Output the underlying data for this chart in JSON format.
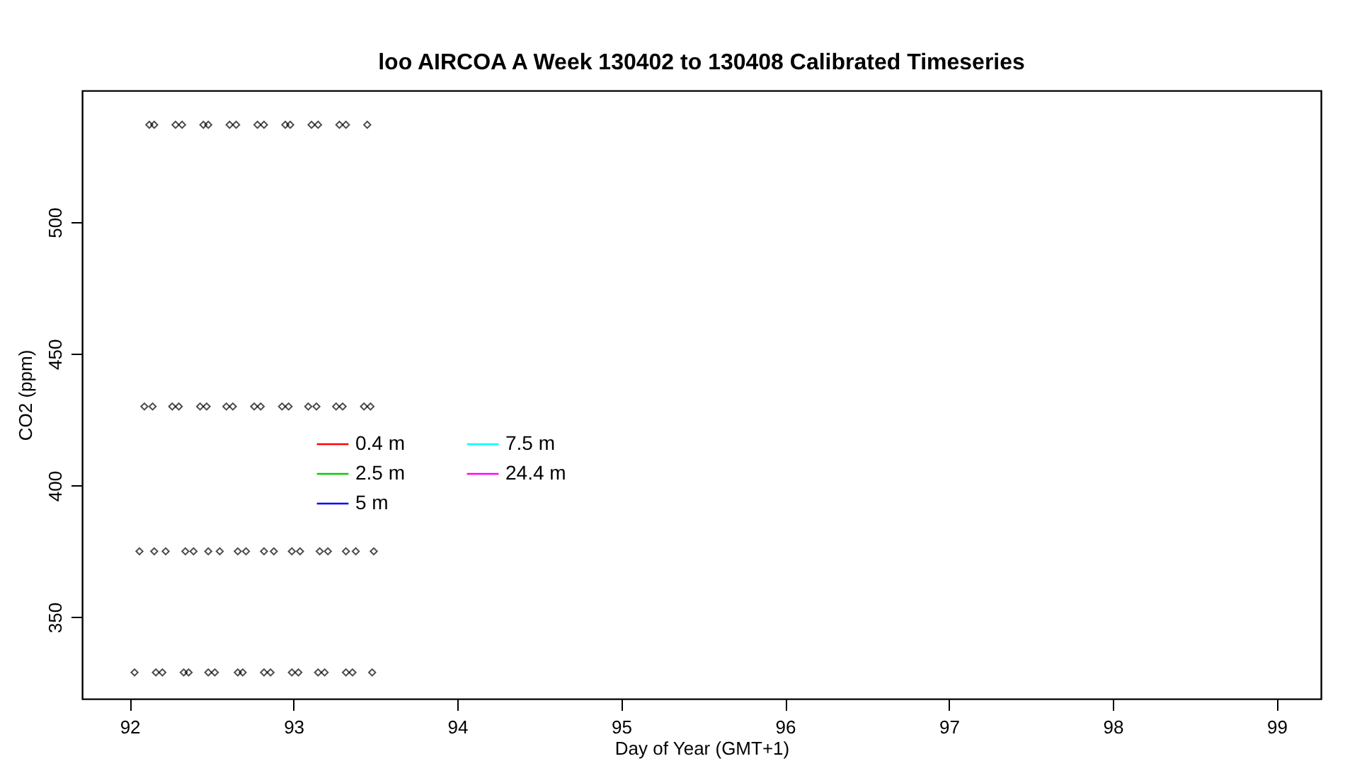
{
  "chart_data": {
    "type": "scatter",
    "title": "loo AIRCOA A  Week 130402 to 130408  Calibrated Timeseries",
    "xlabel": "Day of Year (GMT+1)",
    "ylabel": "CO2 (ppm)",
    "xlim": [
      91.71,
      99.27
    ],
    "xticks": [
      92,
      93,
      94,
      95,
      96,
      97,
      98,
      99
    ],
    "ylim": [
      319,
      550
    ],
    "yticks": [
      350,
      400,
      450,
      500
    ],
    "grid": false,
    "legend": "left",
    "marker": "diamond",
    "series": [
      {
        "color": "#000000",
        "x": [
          92.12,
          92.15,
          92.28,
          92.32,
          92.45,
          92.48,
          92.61,
          92.65,
          92.78,
          92.82,
          92.95,
          92.98,
          93.11,
          93.15,
          93.28,
          93.32,
          93.45,
          92.09,
          92.14,
          92.26,
          92.3,
          92.43,
          92.47,
          92.59,
          92.63,
          92.76,
          92.8,
          92.93,
          92.97,
          93.09,
          93.14,
          93.26,
          93.3,
          93.43,
          93.47,
          92.06,
          92.15,
          92.22,
          92.34,
          92.39,
          92.48,
          92.55,
          92.66,
          92.71,
          92.82,
          92.88,
          92.99,
          93.04,
          93.16,
          93.21,
          93.32,
          93.38,
          93.49,
          92.03,
          92.16,
          92.2,
          92.33,
          92.36,
          92.48,
          92.52,
          92.66,
          92.69,
          92.82,
          92.86,
          92.99,
          93.03,
          93.15,
          93.19,
          93.32,
          93.36,
          93.48
        ],
        "values": [
          537,
          537,
          537,
          537,
          537,
          537,
          537,
          537,
          537,
          537,
          537,
          537,
          537,
          537,
          537,
          537,
          537,
          430,
          430,
          430,
          430,
          430,
          430,
          430,
          430,
          430,
          430,
          430,
          430,
          430,
          430,
          430,
          430,
          430,
          430,
          375,
          375,
          375,
          375,
          375,
          375,
          375,
          375,
          375,
          375,
          375,
          375,
          375,
          375,
          375,
          375,
          375,
          375,
          329,
          329,
          329,
          329,
          329,
          329,
          329,
          329,
          329,
          329,
          329,
          329,
          329,
          329,
          329,
          329,
          329,
          329
        ]
      },
      {
        "type": "line",
        "name": "0.4 m",
        "color": "#ff0000"
      },
      {
        "type": "line",
        "name": "2.5 m",
        "color": "#00cd00"
      },
      {
        "type": "line",
        "name": "5 m",
        "color": "#0000ff"
      },
      {
        "type": "line",
        "name": "7.5 m",
        "color": "#00ffff"
      },
      {
        "type": "line",
        "name": "24.4 m",
        "color": "#ff00ff"
      }
    ]
  }
}
